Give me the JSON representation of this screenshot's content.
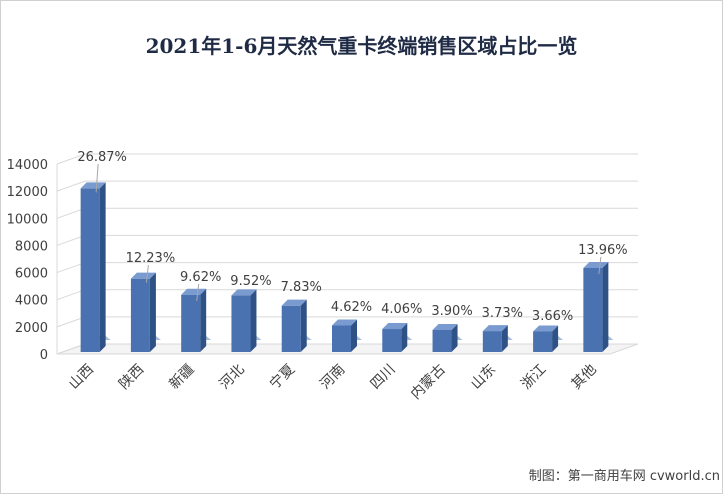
{
  "chart_data": {
    "type": "bar",
    "title": "2021年1-6月天然气重卡终端销售区域占比一览",
    "categories": [
      "山西",
      "陕西",
      "新疆",
      "河北",
      "宁夏",
      "河南",
      "四川",
      "内蒙古",
      "山东",
      "浙江",
      "其他"
    ],
    "values": [
      12200,
      5550,
      4370,
      4320,
      3560,
      2100,
      1840,
      1770,
      1690,
      1660,
      6340
    ],
    "percent_labels": [
      "26.87%",
      "12.23%",
      "9.62%",
      "9.52%",
      "7.83%",
      "4.62%",
      "4.06%",
      "3.90%",
      "3.73%",
      "3.66%",
      "13.96%"
    ],
    "y_ticks": [
      "0",
      "2000",
      "4000",
      "6000",
      "8000",
      "10000",
      "12000",
      "14000"
    ],
    "ylim": [
      0,
      14000
    ],
    "grid": true,
    "bar_color": "#4a72b0",
    "credit": "制图：第一商用车网 cvworld.cn"
  }
}
